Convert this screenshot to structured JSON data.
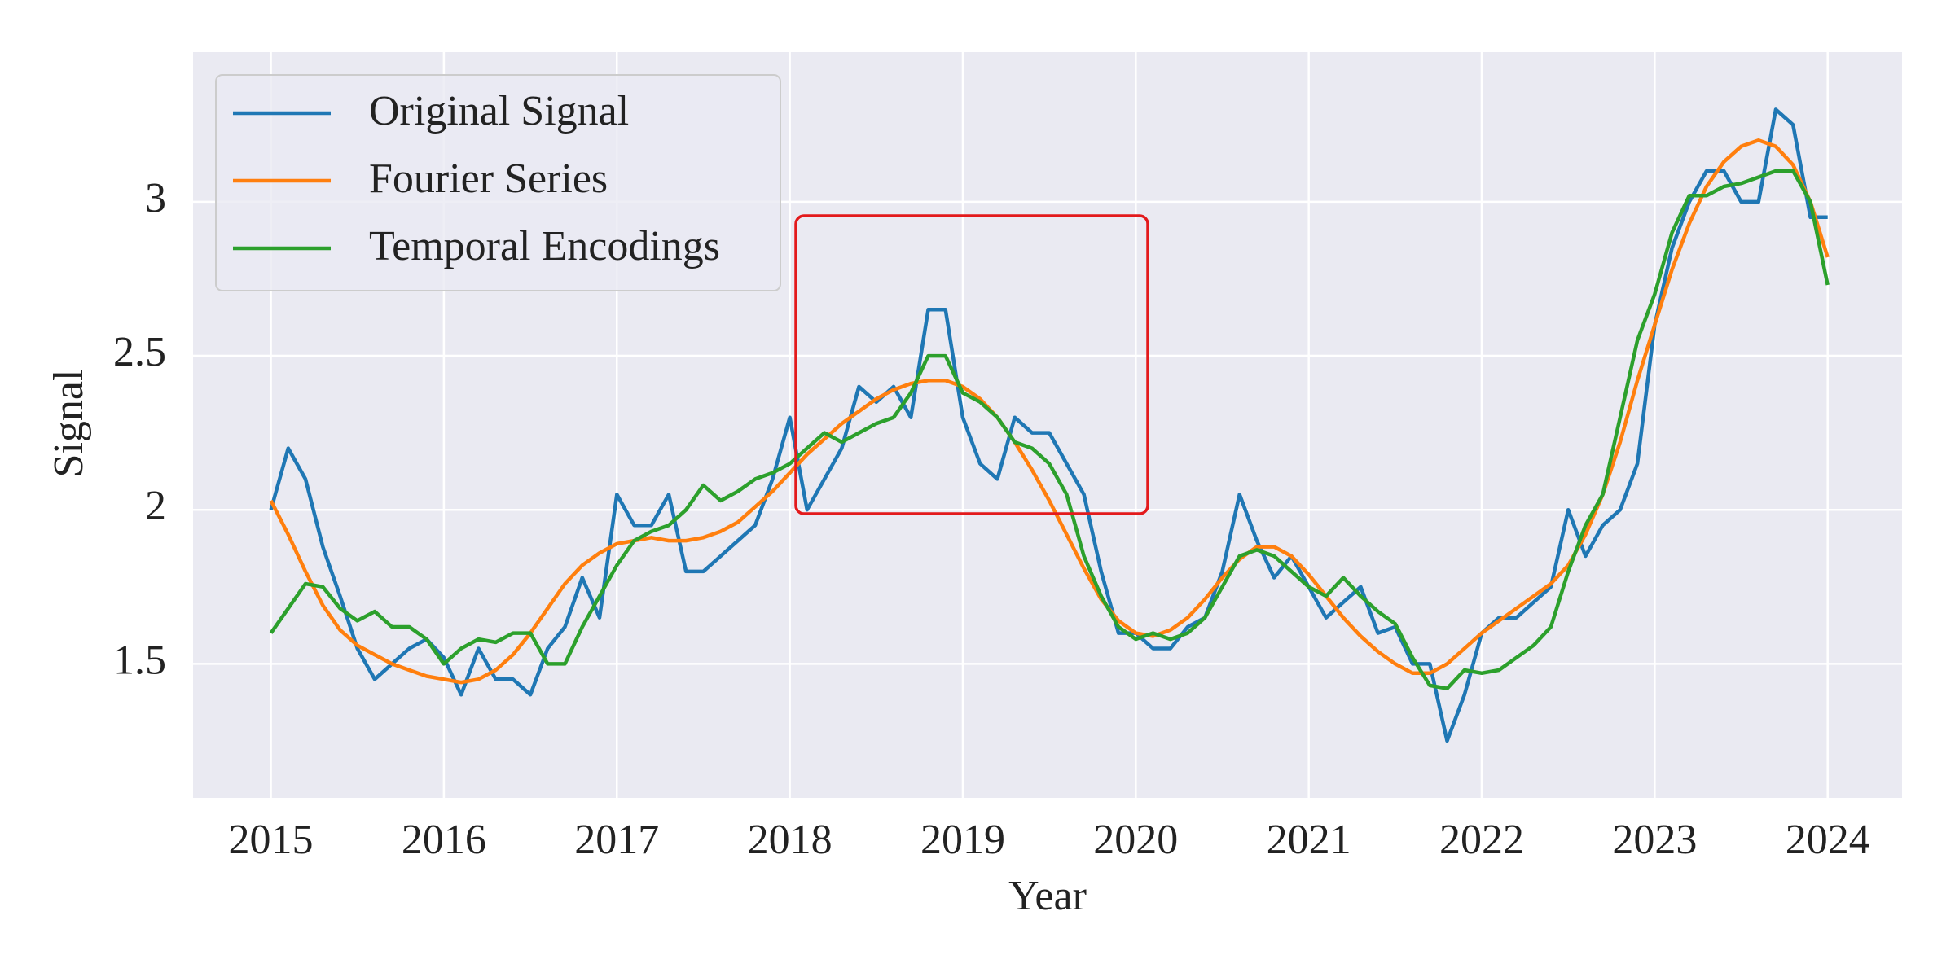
{
  "chart_data": {
    "type": "line",
    "xlabel": "Year",
    "ylabel": "Signal",
    "xlim": [
      2014.55,
      2024.43
    ],
    "ylim": [
      1.065,
      3.486
    ],
    "xticks": [
      2015,
      2016,
      2017,
      2018,
      2019,
      2020,
      2021,
      2022,
      2023,
      2024
    ],
    "yticks": [
      1.5,
      2.0,
      2.5,
      3.0
    ],
    "grid": true,
    "legend_loc": "upper left",
    "x": [
      2015,
      2015.1,
      2015.2,
      2015.3,
      2015.4,
      2015.5,
      2015.6,
      2015.7,
      2015.8,
      2015.9,
      2016,
      2016.1,
      2016.2,
      2016.3,
      2016.4,
      2016.5,
      2016.6,
      2016.7,
      2016.8,
      2016.9,
      2017,
      2017.1,
      2017.2,
      2017.3,
      2017.4,
      2017.5,
      2017.6,
      2017.7,
      2017.8,
      2017.9,
      2018,
      2018.1,
      2018.2,
      2018.3,
      2018.4,
      2018.5,
      2018.6,
      2018.7,
      2018.8,
      2018.9,
      2019,
      2019.1,
      2019.2,
      2019.3,
      2019.4,
      2019.5,
      2019.6,
      2019.7,
      2019.8,
      2019.9,
      2020,
      2020.1,
      2020.2,
      2020.3,
      2020.4,
      2020.5,
      2020.6,
      2020.7,
      2020.8,
      2020.9,
      2021,
      2021.1,
      2021.2,
      2021.3,
      2021.4,
      2021.5,
      2021.6,
      2021.7,
      2021.8,
      2021.9,
      2022,
      2022.1,
      2022.2,
      2022.3,
      2022.4,
      2022.5,
      2022.6,
      2022.7,
      2022.8,
      2022.9,
      2023,
      2023.1,
      2023.2,
      2023.3,
      2023.4,
      2023.5,
      2023.6,
      2023.7,
      2023.8,
      2023.9,
      2024
    ],
    "series": [
      {
        "name": "Original Signal",
        "color": "#1f77b4",
        "values": [
          2.0,
          2.2,
          2.1,
          1.88,
          1.72,
          1.55,
          1.45,
          1.5,
          1.55,
          1.58,
          1.52,
          1.4,
          1.55,
          1.45,
          1.45,
          1.4,
          1.55,
          1.62,
          1.78,
          1.65,
          2.05,
          1.95,
          1.95,
          2.05,
          1.8,
          1.8,
          1.85,
          1.9,
          1.95,
          2.1,
          2.3,
          2.0,
          2.1,
          2.2,
          2.4,
          2.35,
          2.4,
          2.3,
          2.65,
          2.65,
          2.3,
          2.15,
          2.1,
          2.3,
          2.25,
          2.25,
          2.15,
          2.05,
          1.8,
          1.6,
          1.6,
          1.55,
          1.55,
          1.62,
          1.65,
          1.8,
          2.05,
          1.9,
          1.78,
          1.85,
          1.75,
          1.65,
          1.7,
          1.75,
          1.6,
          1.62,
          1.5,
          1.5,
          1.25,
          1.4,
          1.6,
          1.65,
          1.65,
          1.7,
          1.75,
          2.0,
          1.85,
          1.95,
          2.0,
          2.15,
          2.6,
          2.85,
          3.0,
          3.1,
          3.1,
          3.0,
          3.0,
          3.3,
          3.25,
          2.95,
          2.95
        ]
      },
      {
        "name": "Fourier Series",
        "color": "#ff7f0e",
        "values": [
          2.03,
          1.92,
          1.8,
          1.69,
          1.61,
          1.56,
          1.53,
          1.5,
          1.48,
          1.46,
          1.45,
          1.44,
          1.45,
          1.48,
          1.53,
          1.6,
          1.68,
          1.76,
          1.82,
          1.86,
          1.89,
          1.9,
          1.91,
          1.9,
          1.9,
          1.91,
          1.93,
          1.96,
          2.01,
          2.06,
          2.12,
          2.18,
          2.23,
          2.28,
          2.32,
          2.36,
          2.39,
          2.41,
          2.42,
          2.42,
          2.4,
          2.36,
          2.3,
          2.22,
          2.13,
          2.03,
          1.92,
          1.81,
          1.71,
          1.64,
          1.6,
          1.59,
          1.61,
          1.65,
          1.71,
          1.78,
          1.84,
          1.88,
          1.88,
          1.85,
          1.79,
          1.72,
          1.65,
          1.59,
          1.54,
          1.5,
          1.47,
          1.47,
          1.5,
          1.55,
          1.6,
          1.64,
          1.68,
          1.72,
          1.76,
          1.82,
          1.92,
          2.05,
          2.22,
          2.42,
          2.6,
          2.78,
          2.93,
          3.05,
          3.13,
          3.18,
          3.2,
          3.18,
          3.12,
          3.0,
          2.82
        ]
      },
      {
        "name": "Temporal Encodings",
        "color": "#2ca02c",
        "values": [
          1.6,
          1.68,
          1.76,
          1.75,
          1.68,
          1.64,
          1.67,
          1.62,
          1.62,
          1.58,
          1.5,
          1.55,
          1.58,
          1.57,
          1.6,
          1.6,
          1.5,
          1.5,
          1.62,
          1.72,
          1.82,
          1.9,
          1.93,
          1.95,
          2.0,
          2.08,
          2.03,
          2.06,
          2.1,
          2.12,
          2.15,
          2.2,
          2.25,
          2.22,
          2.25,
          2.28,
          2.3,
          2.38,
          2.5,
          2.5,
          2.38,
          2.35,
          2.3,
          2.22,
          2.2,
          2.15,
          2.05,
          1.85,
          1.72,
          1.62,
          1.58,
          1.6,
          1.58,
          1.6,
          1.65,
          1.75,
          1.85,
          1.87,
          1.85,
          1.8,
          1.75,
          1.72,
          1.78,
          1.72,
          1.67,
          1.63,
          1.52,
          1.43,
          1.42,
          1.48,
          1.47,
          1.48,
          1.52,
          1.56,
          1.62,
          1.8,
          1.95,
          2.05,
          2.3,
          2.55,
          2.7,
          2.9,
          3.02,
          3.02,
          3.05,
          3.06,
          3.08,
          3.1,
          3.1,
          3.0,
          2.73
        ]
      }
    ]
  }
}
